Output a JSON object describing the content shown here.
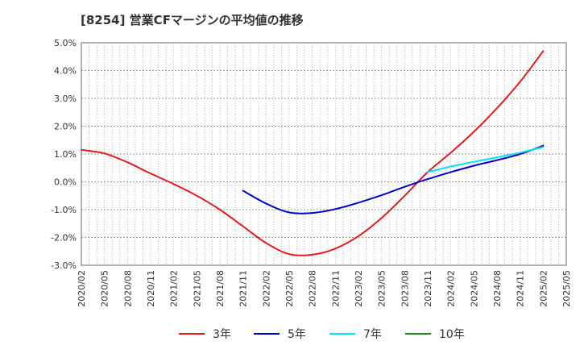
{
  "chart_data": {
    "type": "line",
    "title": "[8254]  営業CFマージンの平均値の推移",
    "xlabel": "",
    "ylabel": "",
    "x": [
      "2020/02",
      "2020/05",
      "2020/08",
      "2020/11",
      "2021/02",
      "2021/05",
      "2021/08",
      "2021/11",
      "2022/02",
      "2022/05",
      "2022/08",
      "2022/11",
      "2023/02",
      "2023/05",
      "2023/08",
      "2023/11",
      "2024/02",
      "2024/05",
      "2024/08",
      "2024/11",
      "2025/02",
      "2025/05"
    ],
    "ylim": [
      -3.0,
      5.0
    ],
    "yticks": [
      5.0,
      4.0,
      3.0,
      2.0,
      1.0,
      0.0,
      -1.0,
      -2.0,
      -3.0
    ],
    "ytick_labels": [
      "5.0%",
      "4.0%",
      "3.0%",
      "2.0%",
      "1.0%",
      "0.0%",
      "-1.0%",
      "-2.0%",
      "-3.0%"
    ],
    "grid": true,
    "legend_position": "bottom",
    "series": [
      {
        "name": "3年",
        "color": "#e41a1c",
        "values": [
          1.15,
          1.02,
          0.7,
          0.3,
          -0.08,
          -0.5,
          -1.0,
          -1.6,
          -2.2,
          -2.6,
          -2.62,
          -2.4,
          -1.95,
          -1.3,
          -0.5,
          0.35,
          1.05,
          1.8,
          2.65,
          3.6,
          4.7,
          null
        ]
      },
      {
        "name": "5年",
        "color": "#0000cc",
        "values": [
          null,
          null,
          null,
          null,
          null,
          null,
          null,
          -0.32,
          -0.78,
          -1.1,
          -1.12,
          -0.98,
          -0.75,
          -0.48,
          -0.18,
          0.1,
          0.35,
          0.58,
          0.78,
          1.0,
          1.3,
          null
        ]
      },
      {
        "name": "7年",
        "color": "#00e5ee",
        "values": [
          null,
          null,
          null,
          null,
          null,
          null,
          null,
          null,
          null,
          null,
          null,
          null,
          null,
          null,
          null,
          0.35,
          0.55,
          0.72,
          0.88,
          1.05,
          1.25,
          null
        ]
      },
      {
        "name": "10年",
        "color": "#228b22",
        "values": [
          null,
          null,
          null,
          null,
          null,
          null,
          null,
          null,
          null,
          null,
          null,
          null,
          null,
          null,
          null,
          null,
          null,
          null,
          null,
          null,
          null,
          null
        ]
      }
    ]
  }
}
